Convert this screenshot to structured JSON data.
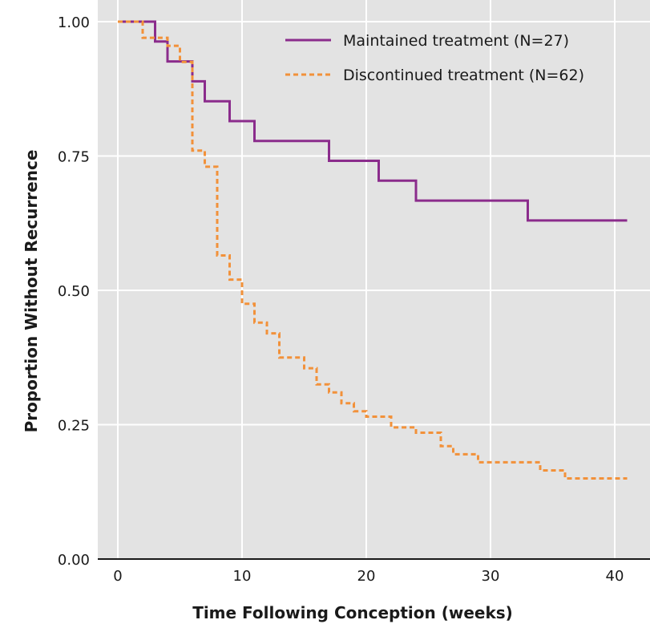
{
  "chart_data": {
    "type": "line",
    "subtype": "step",
    "xlabel": "Time Following Conception (weeks)",
    "ylabel": "Proportion Without Recurrence",
    "xlim": [
      -2,
      42
    ],
    "ylim": [
      0,
      1.04
    ],
    "x_ticks": [
      0,
      10,
      20,
      30,
      40
    ],
    "y_ticks": [
      0.0,
      0.25,
      0.5,
      0.75,
      1.0
    ],
    "x_tick_labels": [
      "0",
      "10",
      "20",
      "30",
      "40"
    ],
    "y_tick_labels": [
      "0.00",
      "0.25",
      "0.50",
      "0.75",
      "1.00"
    ],
    "grid": true,
    "background": "#e3e3e3",
    "legend_position": "top-right",
    "series": [
      {
        "name": "Maintained treatment (N=27)",
        "color": "#8b2c8c",
        "dash": "solid",
        "points": [
          [
            0,
            1.0
          ],
          [
            3,
            1.0
          ],
          [
            3,
            0.963
          ],
          [
            4,
            0.963
          ],
          [
            4,
            0.926
          ],
          [
            6,
            0.926
          ],
          [
            6,
            0.889
          ],
          [
            7,
            0.889
          ],
          [
            7,
            0.852
          ],
          [
            9,
            0.852
          ],
          [
            9,
            0.815
          ],
          [
            11,
            0.815
          ],
          [
            11,
            0.778
          ],
          [
            17,
            0.778
          ],
          [
            17,
            0.741
          ],
          [
            21,
            0.741
          ],
          [
            21,
            0.704
          ],
          [
            24,
            0.704
          ],
          [
            24,
            0.667
          ],
          [
            33,
            0.667
          ],
          [
            33,
            0.63
          ],
          [
            41,
            0.63
          ]
        ]
      },
      {
        "name": "Discontinued treatment (N=62)",
        "color": "#f2913a",
        "dash": "dashed",
        "points": [
          [
            0,
            1.0
          ],
          [
            2,
            1.0
          ],
          [
            2,
            0.97
          ],
          [
            4,
            0.97
          ],
          [
            4,
            0.955
          ],
          [
            5,
            0.955
          ],
          [
            5,
            0.925
          ],
          [
            6,
            0.925
          ],
          [
            6,
            0.76
          ],
          [
            7,
            0.76
          ],
          [
            7,
            0.73
          ],
          [
            8,
            0.73
          ],
          [
            8,
            0.565
          ],
          [
            9,
            0.565
          ],
          [
            9,
            0.52
          ],
          [
            10,
            0.52
          ],
          [
            10,
            0.475
          ],
          [
            11,
            0.475
          ],
          [
            11,
            0.44
          ],
          [
            12,
            0.44
          ],
          [
            12,
            0.42
          ],
          [
            13,
            0.42
          ],
          [
            13,
            0.375
          ],
          [
            15,
            0.375
          ],
          [
            15,
            0.355
          ],
          [
            16,
            0.355
          ],
          [
            16,
            0.325
          ],
          [
            17,
            0.325
          ],
          [
            17,
            0.31
          ],
          [
            18,
            0.31
          ],
          [
            18,
            0.29
          ],
          [
            19,
            0.29
          ],
          [
            19,
            0.275
          ],
          [
            20,
            0.275
          ],
          [
            20,
            0.265
          ],
          [
            22,
            0.265
          ],
          [
            22,
            0.245
          ],
          [
            24,
            0.245
          ],
          [
            24,
            0.235
          ],
          [
            26,
            0.235
          ],
          [
            26,
            0.21
          ],
          [
            27,
            0.21
          ],
          [
            27,
            0.195
          ],
          [
            29,
            0.195
          ],
          [
            29,
            0.18
          ],
          [
            34,
            0.18
          ],
          [
            34,
            0.165
          ],
          [
            36,
            0.165
          ],
          [
            36,
            0.15
          ],
          [
            41,
            0.15
          ]
        ]
      }
    ]
  }
}
